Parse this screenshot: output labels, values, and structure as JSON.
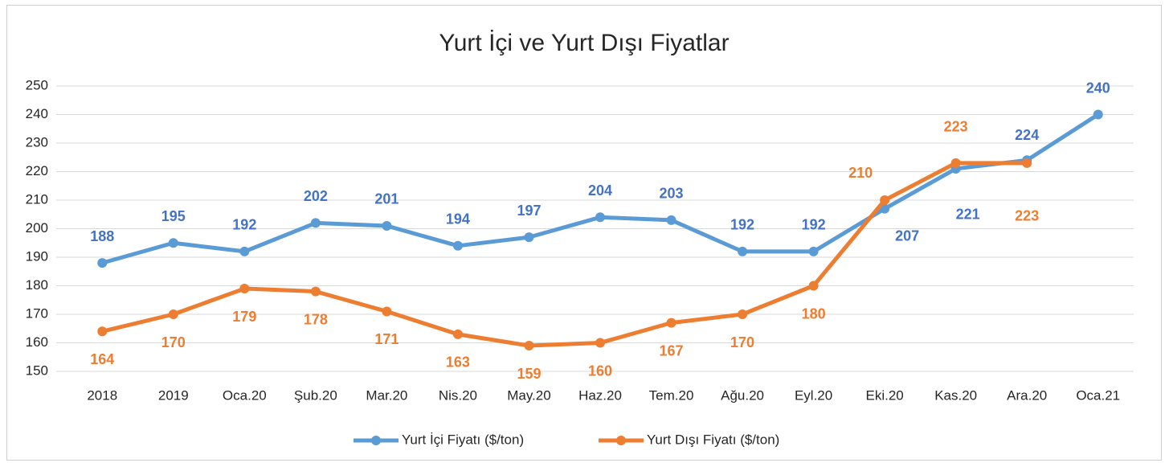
{
  "chart_data": {
    "type": "line",
    "title": "Yurt İçi ve Yurt Dışı Fiyatlar",
    "categories": [
      "2018",
      "2019",
      "Oca.20",
      "Şub.20",
      "Mar.20",
      "Nis.20",
      "May.20",
      "Haz.20",
      "Tem.20",
      "Ağu.20",
      "Eyl.20",
      "Eki.20",
      "Kas.20",
      "Ara.20",
      "Oca.21"
    ],
    "series": [
      {
        "name": "Yurt İçi Fiyatı ($/ton)",
        "color": "#5b9bd5",
        "label_color": "#4472c4",
        "values": [
          188,
          195,
          192,
          202,
          201,
          194,
          197,
          204,
          203,
          192,
          192,
          207,
          221,
          224,
          240
        ]
      },
      {
        "name": "Yurt Dışı Fiyatı ($/ton)",
        "color": "#ed7d31",
        "label_color": "#ed7d31",
        "values": [
          164,
          170,
          179,
          178,
          171,
          163,
          159,
          160,
          167,
          170,
          180,
          210,
          223,
          223,
          null
        ]
      }
    ],
    "ylim": [
      150,
      250
    ],
    "yticks": [
      150,
      160,
      170,
      180,
      190,
      200,
      210,
      220,
      230,
      240,
      250
    ],
    "grid": true,
    "legend": "bottom"
  }
}
